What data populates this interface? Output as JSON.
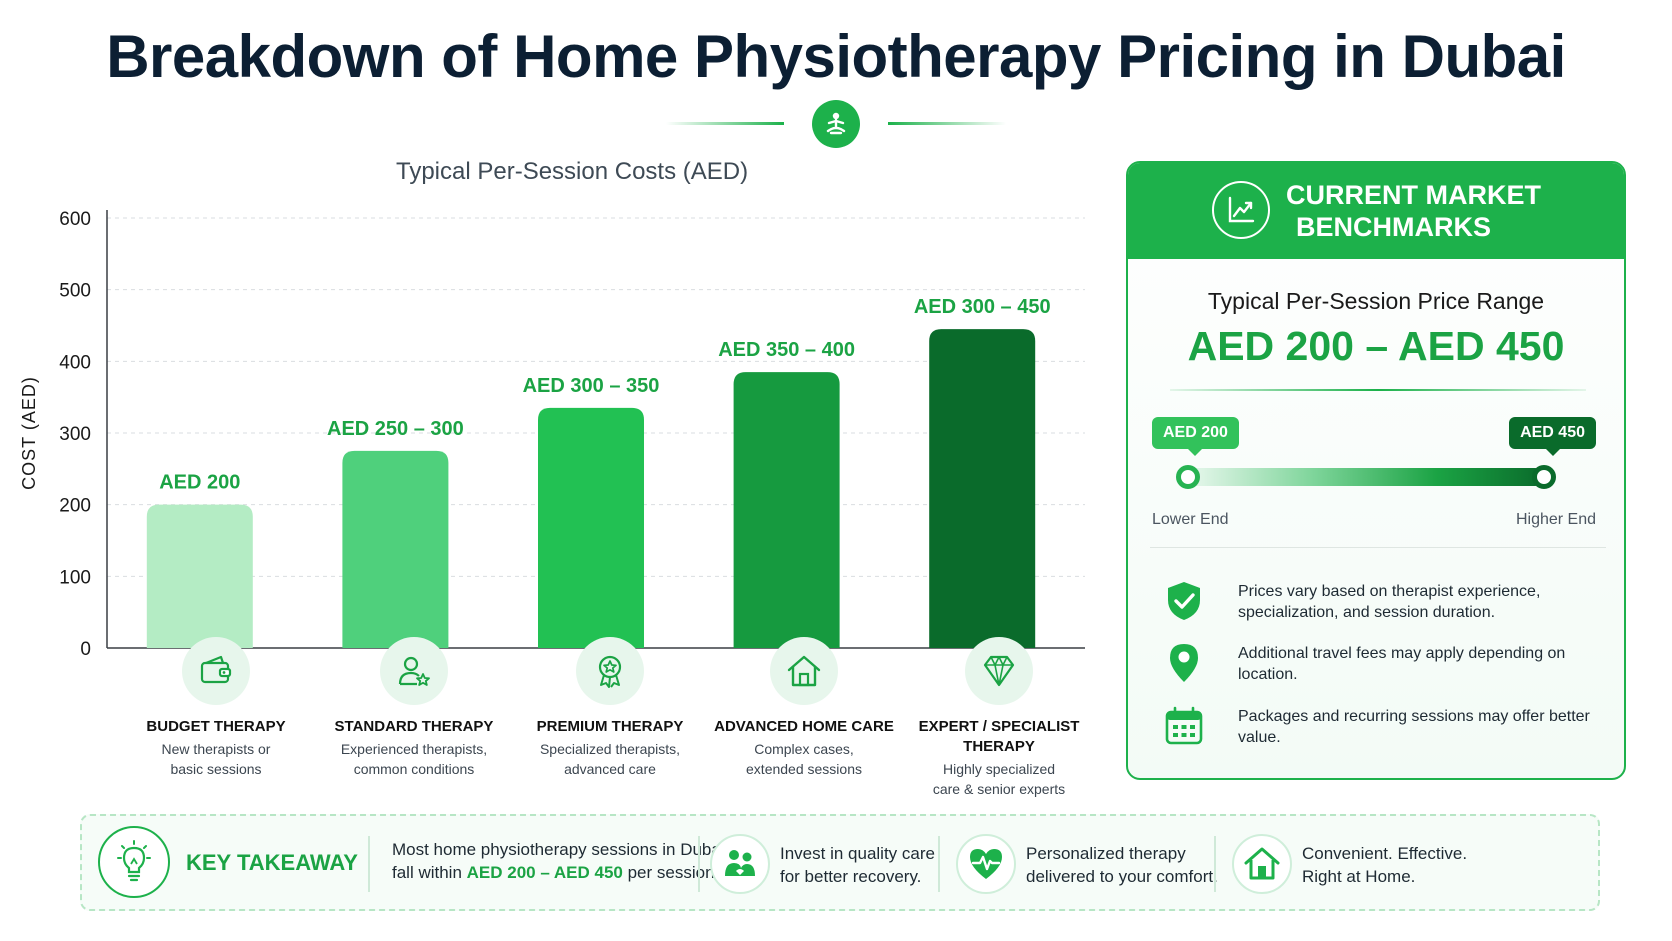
{
  "page": {
    "title": "Breakdown of Home Physiotherapy Pricing in Dubai",
    "chart_heading": "Typical Per-Session Costs (AED)"
  },
  "chart_data": {
    "type": "bar",
    "title": "Typical Per-Session Costs (AED)",
    "xlabel": "",
    "ylabel": "COST (AED)",
    "ylim": [
      0,
      600
    ],
    "yticks": [
      0,
      100,
      200,
      300,
      400,
      500,
      600
    ],
    "grid": true,
    "categories": [
      "BUDGET THERAPY",
      "STANDARD THERAPY",
      "PREMIUM THERAPY",
      "ADVANCED HOME CARE",
      "EXPERT / SPECIALIST THERAPY"
    ],
    "values": [
      200,
      275,
      335,
      385,
      445
    ],
    "data_labels": [
      "AED 200",
      "AED 250 – 300",
      "AED 300 – 350",
      "AED 350 – 400",
      "AED 300 – 450"
    ],
    "colors": [
      "#b4ecc4",
      "#4fd07c",
      "#22c153",
      "#169a3f",
      "#0a6b2b"
    ]
  },
  "categories": [
    {
      "name": "BUDGET THERAPY",
      "desc1": "New therapists or",
      "desc2": "basic sessions",
      "icon": "wallet-icon"
    },
    {
      "name": "STANDARD THERAPY",
      "desc1": "Experienced therapists,",
      "desc2": "common conditions",
      "icon": "user-star-icon"
    },
    {
      "name": "PREMIUM THERAPY",
      "desc1": "Specialized therapists,",
      "desc2": "advanced care",
      "icon": "award-badge-icon"
    },
    {
      "name": "ADVANCED HOME CARE",
      "desc1": "Complex cases,",
      "desc2": "extended sessions",
      "icon": "home-icon"
    },
    {
      "name": "EXPERT / SPECIALIST",
      "name2": "THERAPY",
      "desc1": "Highly specialized",
      "desc2": "care & senior experts",
      "icon": "diamond-icon"
    }
  ],
  "benchmarks": {
    "header_line1": "CURRENT MARKET",
    "header_line2": "BENCHMARKS",
    "header_icon": "trend-chart-icon",
    "range_label": "Typical Per-Session Price Range",
    "range_value": "AED 200 – AED 450",
    "low_pill": "AED 200",
    "high_pill": "AED 450",
    "low_label": "Lower End",
    "high_label": "Higher End",
    "notes": [
      {
        "text": "Prices vary based on therapist experience, specialization, and session duration.",
        "icon": "shield-check-icon"
      },
      {
        "text": "Additional travel fees may apply depending on location.",
        "icon": "location-pin-icon"
      },
      {
        "text": "Packages and recurring sessions may offer better value.",
        "icon": "calendar-icon"
      }
    ]
  },
  "takeaway": {
    "title": "KEY TAKEAWAY",
    "text_a": "Most home physiotherapy sessions in Dubai",
    "text_b": "fall within ",
    "highlight": "AED 200 – AED 450",
    "text_c": " per session.",
    "items": [
      {
        "line1": "Invest in quality care",
        "line2": "for better recovery.",
        "icon": "caregiver-icon"
      },
      {
        "line1": "Personalized therapy",
        "line2": "delivered to your comfort.",
        "icon": "heart-pulse-icon"
      },
      {
        "line1": "Convenient. Effective.",
        "line2": "Right at Home.",
        "icon": "house-icon"
      }
    ]
  },
  "colors": {
    "accent": "#1db14b",
    "accent_dark": "#0a6b2b",
    "text": "#0c1f33"
  }
}
